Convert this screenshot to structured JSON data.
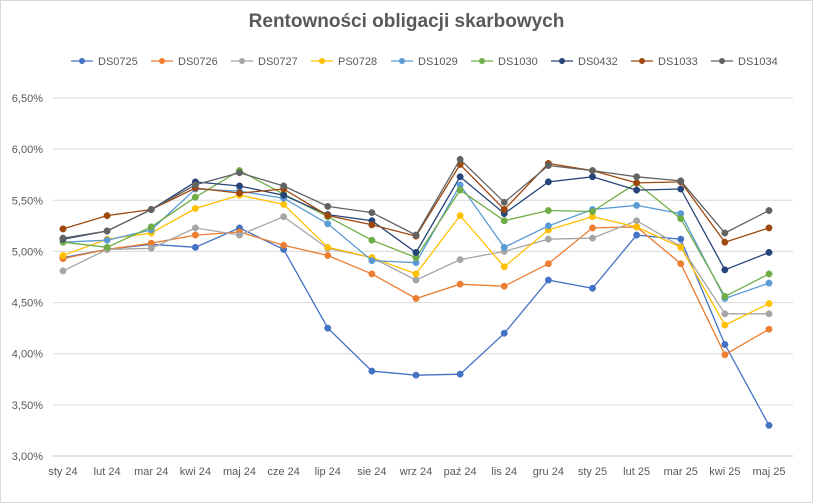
{
  "chart_data": {
    "type": "line",
    "title": "Rentowności  obligacji skarbowych",
    "xlabel": "",
    "ylabel": "",
    "ylim": [
      0.03,
      0.065
    ],
    "yticks": [
      "3,00%",
      "3,50%",
      "4,00%",
      "4,50%",
      "5,00%",
      "5,50%",
      "6,00%",
      "6,50%"
    ],
    "categories": [
      "sty 24",
      "lut 24",
      "mar 24",
      "kwi 24",
      "maj 24",
      "cze 24",
      "lip 24",
      "sie 24",
      "wrz 24",
      "paź 24",
      "lis 24",
      "gru 24",
      "sty 25",
      "lut 25",
      "mar 25",
      "kwi 25",
      "maj 25"
    ],
    "legend_position": "top",
    "grid": true,
    "series": [
      {
        "name": "DS0725",
        "color": "#4472c4",
        "values": [
          0.0494,
          0.0502,
          0.0507,
          0.0504,
          0.0523,
          0.0502,
          0.0425,
          0.0383,
          0.0379,
          0.038,
          0.042,
          0.0472,
          0.0464,
          0.0516,
          0.0512,
          0.0409,
          0.033
        ]
      },
      {
        "name": "DS0726",
        "color": "#ed7d31",
        "values": [
          0.0493,
          0.0502,
          0.0508,
          0.0516,
          0.0519,
          0.0506,
          0.0496,
          0.0478,
          0.0454,
          0.0468,
          0.0466,
          0.0488,
          0.0523,
          0.0524,
          0.0488,
          0.0399,
          0.0424
        ]
      },
      {
        "name": "DS0727",
        "color": "#a5a5a5",
        "values": [
          0.0481,
          0.0502,
          0.0503,
          0.0523,
          0.0516,
          0.0534,
          0.0503,
          0.0494,
          0.0472,
          0.0492,
          0.05,
          0.0512,
          0.0513,
          0.053,
          0.0505,
          0.0439,
          0.0439
        ]
      },
      {
        "name": "PS0728",
        "color": "#ffc000",
        "values": [
          0.0496,
          0.0512,
          0.0518,
          0.0542,
          0.0555,
          0.0546,
          0.0504,
          0.0494,
          0.0478,
          0.0535,
          0.0485,
          0.0521,
          0.0534,
          0.0524,
          0.0504,
          0.0428,
          0.0449
        ]
      },
      {
        "name": "DS1029",
        "color": "#5b9bd5",
        "values": [
          0.0509,
          0.0511,
          0.0521,
          0.0561,
          0.0559,
          0.0552,
          0.0527,
          0.0491,
          0.0489,
          0.0565,
          0.0504,
          0.0525,
          0.0541,
          0.0545,
          0.0537,
          0.0454,
          0.0469
        ]
      },
      {
        "name": "DS1030",
        "color": "#70ad47",
        "values": [
          0.0509,
          0.0504,
          0.0524,
          0.0553,
          0.0579,
          0.0556,
          0.0534,
          0.0511,
          0.0494,
          0.056,
          0.053,
          0.054,
          0.0539,
          0.0567,
          0.0532,
          0.0456,
          0.0478
        ]
      },
      {
        "name": "DS0432",
        "color": "#264478",
        "values": [
          0.0512,
          0.052,
          0.0541,
          0.0568,
          0.0564,
          0.0555,
          0.0536,
          0.053,
          0.0499,
          0.0573,
          0.0537,
          0.0568,
          0.0573,
          0.056,
          0.0561,
          0.0482,
          0.0499
        ]
      },
      {
        "name": "DS1033",
        "color": "#9e480e",
        "values": [
          0.0522,
          0.0535,
          0.0541,
          0.0562,
          0.0557,
          0.0561,
          0.0535,
          0.0526,
          0.0515,
          0.0585,
          0.0541,
          0.0586,
          0.0579,
          0.0567,
          0.0568,
          0.0509,
          0.0523
        ]
      },
      {
        "name": "DS1034",
        "color": "#636363",
        "values": [
          0.0513,
          0.052,
          0.0541,
          0.0565,
          0.0577,
          0.0564,
          0.0544,
          0.0538,
          0.0516,
          0.059,
          0.0548,
          0.0584,
          0.0579,
          0.0573,
          0.0569,
          0.0518,
          0.054
        ]
      }
    ]
  }
}
